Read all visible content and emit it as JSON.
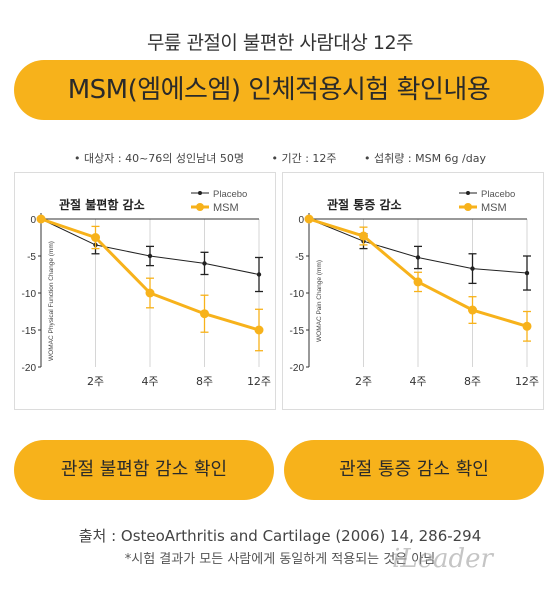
{
  "header": {
    "title": "무릎 관절이 불편한 사람대상 12주",
    "banner": "MSM(엠에스엠) 인체적용시험 확인내용"
  },
  "info": {
    "subjects": "• 대상자 : 40~76의 성인남녀 50명",
    "period": "• 기간 : 12주",
    "dose": "• 섭취량 : MSM 6g /day"
  },
  "colors": {
    "accent": "#f7b21b",
    "placebo": "#222222",
    "msm": "#f7b21b"
  },
  "chart_data": [
    {
      "type": "line",
      "title": "관절 불편함 감소",
      "ylabel": "WOMAC Physical Function Change (mm)",
      "xlabel": "",
      "x": [
        "0",
        "2주",
        "4주",
        "8주",
        "12주"
      ],
      "x_tick_labels": [
        "",
        "2주",
        "4주",
        "8주",
        "12주"
      ],
      "ylim": [
        -20,
        0
      ],
      "yticks": [
        0,
        -5,
        -10,
        -15,
        -20
      ],
      "grid": true,
      "legend": "top-right",
      "series": [
        {
          "name": "Placebo",
          "values": [
            0,
            -3.5,
            -5,
            -6,
            -7.5
          ],
          "errors": [
            0,
            1.2,
            1.3,
            1.5,
            2.3
          ],
          "color": "#222222"
        },
        {
          "name": "MSM",
          "values": [
            0,
            -2.5,
            -10,
            -12.8,
            -15
          ],
          "errors": [
            0,
            1.5,
            2,
            2.5,
            2.8
          ],
          "color": "#f7b21b"
        }
      ]
    },
    {
      "type": "line",
      "title": "관절 통증 감소",
      "ylabel": "WOMAC Pain Change (mm)",
      "xlabel": "",
      "x": [
        "0",
        "2주",
        "4주",
        "8주",
        "12주"
      ],
      "x_tick_labels": [
        "",
        "2주",
        "4주",
        "8주",
        "12주"
      ],
      "ylim": [
        -20,
        0
      ],
      "yticks": [
        0,
        -5,
        -10,
        -15,
        -20
      ],
      "grid": true,
      "legend": "top-right",
      "series": [
        {
          "name": "Placebo",
          "values": [
            0,
            -3,
            -5.2,
            -6.7,
            -7.3
          ],
          "errors": [
            0,
            1,
            1.5,
            2,
            2.3
          ],
          "color": "#222222"
        },
        {
          "name": "MSM",
          "values": [
            0,
            -2.3,
            -8.5,
            -12.3,
            -14.5
          ],
          "errors": [
            0,
            1.2,
            1.3,
            1.8,
            2
          ],
          "color": "#f7b21b"
        }
      ]
    }
  ],
  "buttons": {
    "discomfort": "관절 불편함 감소 확인",
    "pain": "관절 통증 감소 확인"
  },
  "footer": {
    "source": "출처 : OsteoArthritis and Cartilage (2006) 14, 286-294",
    "note": "*시험 결과가 모든 사람에게 동일하게 적용되는 것은 아님",
    "watermark": "iLeader"
  }
}
